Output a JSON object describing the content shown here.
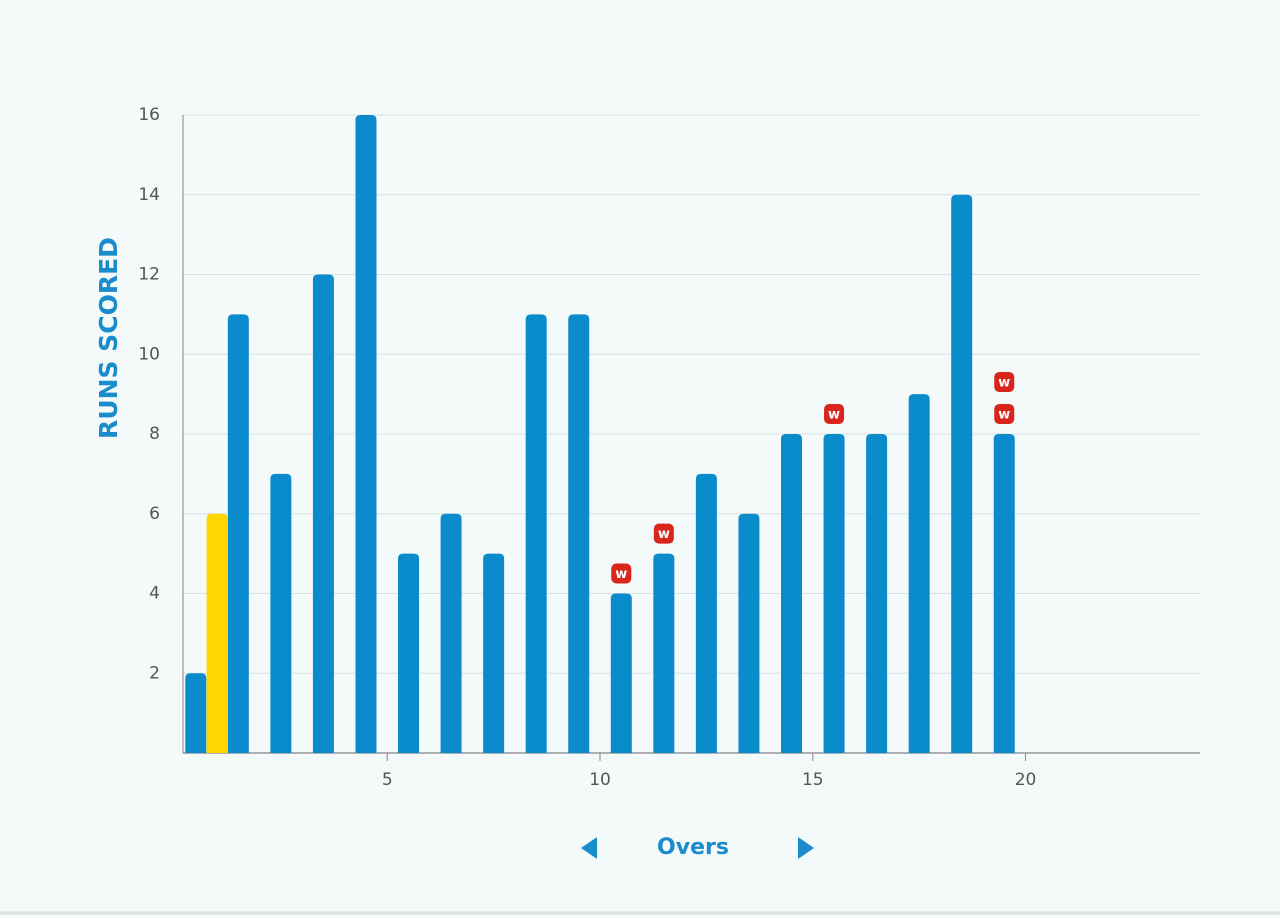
{
  "chart_data": {
    "type": "bar",
    "y_label": "RUNS SCORED",
    "x_label": "Overs",
    "series": [
      {
        "color": "#0a8bcc",
        "x": [
          0.5,
          1.5,
          2.5,
          3.5,
          4.5,
          5.5,
          6.5,
          7.5,
          8.5,
          9.5,
          10.5,
          11.5,
          12.5,
          13.5,
          14.5,
          15.5,
          16.5,
          17.5,
          18.5,
          19.5
        ],
        "values": [
          2,
          11,
          7,
          12,
          16,
          5,
          6,
          5,
          11,
          11,
          4,
          5,
          7,
          6,
          8,
          8,
          8,
          9,
          14,
          8
        ]
      },
      {
        "color": "#ffd600",
        "x": [
          1
        ],
        "values": [
          6
        ]
      }
    ],
    "wickets": {
      "label": "w",
      "color": "#d9261c",
      "x": [
        10.5,
        11.5,
        15.5,
        19.5,
        19.5
      ]
    },
    "xlim": [
      0.2,
      24.1
    ],
    "xticks": [
      5,
      10,
      15,
      20
    ],
    "ylim": [
      0,
      16
    ],
    "yticks": [
      2,
      4,
      6,
      8,
      10,
      12,
      14,
      16
    ],
    "grid": true
  }
}
